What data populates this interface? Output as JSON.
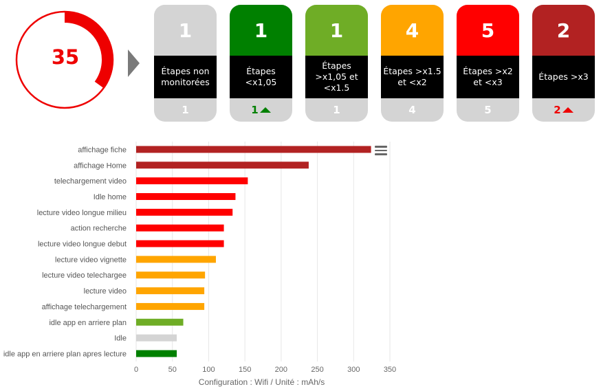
{
  "gauge": {
    "value": "35",
    "fraction": 0.35,
    "color": "#ee0000"
  },
  "cards": [
    {
      "top": "1",
      "label": "Étapes non monitorées",
      "bottom": "1",
      "color": "#d4d4d4",
      "bottom_color": "#ffffff",
      "trend": ""
    },
    {
      "top": "1",
      "label": "Étapes <x1,05",
      "bottom": "1",
      "color": "#008000",
      "bottom_color": "#008000",
      "trend": "up"
    },
    {
      "top": "1",
      "label": "Étapes >x1,05 et <x1.5",
      "bottom": "1",
      "color": "#6fad26",
      "bottom_color": "#ffffff",
      "trend": ""
    },
    {
      "top": "4",
      "label": "Étapes >x1.5 et <x2",
      "bottom": "4",
      "color": "#ffa500",
      "bottom_color": "#ffffff",
      "trend": ""
    },
    {
      "top": "5",
      "label": "Étapes >x2 et <x3",
      "bottom": "5",
      "color": "#ff0000",
      "bottom_color": "#ffffff",
      "trend": ""
    },
    {
      "top": "2",
      "label": "Étapes >x3",
      "bottom": "2",
      "color": "#b22222",
      "bottom_color": "#ee0000",
      "trend": "up"
    }
  ],
  "chart_data": {
    "type": "bar",
    "orientation": "horizontal",
    "categories": [
      "affichage fiche",
      "affichage Home",
      "telechargement video",
      "Idle home",
      "lecture video longue milieu",
      "action recherche",
      "lecture video longue debut",
      "lecture video vignette",
      "lecture video telechargee",
      "lecture video",
      "affichage telechargement",
      "idle app en arriere plan",
      "Idle",
      "idle app en arriere plan apres lecture"
    ],
    "values": [
      324,
      238,
      154,
      137,
      133,
      121,
      121,
      110,
      95,
      94,
      94,
      65,
      56,
      56
    ],
    "colors": [
      "#b22222",
      "#b22222",
      "#ff0000",
      "#ff0000",
      "#ff0000",
      "#ff0000",
      "#ff0000",
      "#ffa500",
      "#ffa500",
      "#ffa500",
      "#ffa500",
      "#6fad26",
      "#d4d4d4",
      "#008000"
    ],
    "xlim": [
      0,
      350
    ],
    "xticks": [
      0,
      50,
      100,
      150,
      200,
      250,
      300,
      350
    ],
    "xlabel": "Configuration : Wifi / Unité : mAh/s",
    "grid": true
  },
  "icons": {
    "menu": "hamburger-menu-icon",
    "arrow": "arrow-right-icon"
  }
}
